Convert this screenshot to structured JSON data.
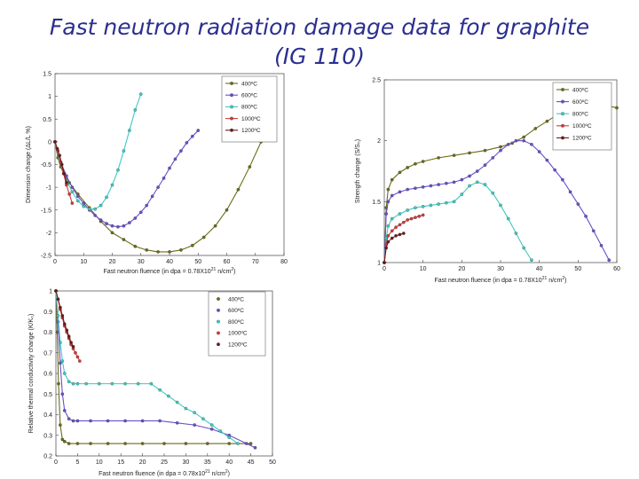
{
  "title_line1": "Fast neutron radiation damage data for graphite",
  "title_line2": "(IG 110)",
  "chart_data": [
    {
      "id": "dim",
      "type": "line",
      "title": "",
      "xlabel": "Fast neutron fluence (in dpa = 0.78X10",
      "xlabel_sup": "21",
      "xlabel_tail": " n/cm",
      "xlabel_sup2": "2",
      "xlabel_end": ")",
      "ylabel": "Dimension change (ΔL/L %)",
      "xlim": [
        0,
        80
      ],
      "ylim": [
        -2.5,
        1.5
      ],
      "xticks": [
        "0",
        "10",
        "20",
        "30",
        "40",
        "50",
        "60",
        "70",
        "80"
      ],
      "yticks": [
        "-2.5",
        "-2",
        "-1.5",
        "-1",
        "-0.5",
        "0",
        "0.5",
        "1",
        "1.5"
      ],
      "legend": "top-right",
      "series": [
        {
          "name": "400ºC",
          "color": "#6b6b1a",
          "x": [
            0,
            1,
            2,
            3,
            5,
            8,
            12,
            16,
            20,
            24,
            28,
            32,
            36,
            40,
            44,
            48,
            52,
            56,
            60,
            64,
            68,
            72,
            75
          ],
          "y": [
            0,
            -0.35,
            -0.55,
            -0.7,
            -0.9,
            -1.15,
            -1.45,
            -1.75,
            -2.0,
            -2.15,
            -2.3,
            -2.38,
            -2.42,
            -2.42,
            -2.38,
            -2.28,
            -2.1,
            -1.85,
            -1.5,
            -1.05,
            -0.55,
            0.0,
            0.4
          ]
        },
        {
          "name": "600ºC",
          "color": "#6a4fc9",
          "x": [
            0,
            2,
            4,
            6,
            8,
            10,
            12,
            14,
            16,
            18,
            20,
            22,
            24,
            26,
            28,
            30,
            32,
            34,
            36,
            38,
            40,
            42,
            44,
            46,
            48,
            50
          ],
          "y": [
            0,
            -0.45,
            -0.75,
            -1.0,
            -1.2,
            -1.35,
            -1.5,
            -1.62,
            -1.72,
            -1.8,
            -1.85,
            -1.87,
            -1.85,
            -1.78,
            -1.68,
            -1.55,
            -1.4,
            -1.2,
            -1.0,
            -0.8,
            -0.58,
            -0.38,
            -0.2,
            -0.02,
            0.12,
            0.25
          ]
        },
        {
          "name": "800ºC",
          "color": "#40c9c0",
          "x": [
            0,
            2,
            4,
            6,
            8,
            10,
            12,
            14,
            16,
            18,
            20,
            22,
            24,
            26,
            28,
            30
          ],
          "y": [
            0,
            -0.5,
            -0.85,
            -1.1,
            -1.3,
            -1.42,
            -1.48,
            -1.48,
            -1.4,
            -1.22,
            -0.95,
            -0.62,
            -0.2,
            0.25,
            0.7,
            1.05
          ]
        },
        {
          "name": "1000ºC",
          "color": "#d13a3a",
          "x": [
            0,
            1,
            2,
            3,
            4,
            5,
            6
          ],
          "y": [
            0,
            -0.2,
            -0.45,
            -0.7,
            -0.95,
            -1.15,
            -1.35
          ]
        },
        {
          "name": "1200ºC",
          "color": "#6b1a1a",
          "x": [
            0,
            0.8,
            1.6,
            2.4,
            3.2,
            4
          ],
          "y": [
            0,
            -0.15,
            -0.3,
            -0.5,
            -0.7,
            -0.9
          ]
        }
      ]
    },
    {
      "id": "str",
      "type": "line",
      "title": "",
      "xlabel": "Fast neutron fluence (in dpa = 0.78X10",
      "xlabel_sup": "21",
      "xlabel_tail": " n/cm",
      "xlabel_sup2": "2",
      "xlabel_end": ")",
      "ylabel": "Strength change (S/S₀)",
      "xlim": [
        0,
        60
      ],
      "ylim": [
        1,
        2.5
      ],
      "xticks": [
        "0",
        "10",
        "20",
        "30",
        "40",
        "50",
        "60"
      ],
      "yticks": [
        "1",
        "1.5",
        "2",
        "2.5"
      ],
      "legend": "top-right",
      "series": [
        {
          "name": "400ºC",
          "color": "#6b6b1a",
          "x": [
            0,
            0.5,
            1,
            2,
            4,
            6,
            8,
            10,
            14,
            18,
            22,
            26,
            30,
            33,
            36,
            39,
            42,
            45,
            48,
            51,
            54,
            57,
            60
          ],
          "y": [
            1.0,
            1.45,
            1.6,
            1.68,
            1.74,
            1.78,
            1.81,
            1.83,
            1.86,
            1.88,
            1.9,
            1.92,
            1.95,
            1.98,
            2.03,
            2.1,
            2.16,
            2.22,
            2.27,
            2.3,
            2.3,
            2.29,
            2.27
          ]
        },
        {
          "name": "600ºC",
          "color": "#6a4fc9",
          "x": [
            0,
            0.5,
            1,
            2,
            4,
            6,
            8,
            10,
            12,
            14,
            16,
            18,
            20,
            22,
            24,
            26,
            28,
            30,
            32,
            34,
            36,
            38,
            40,
            42,
            44,
            46,
            48,
            50,
            52,
            54,
            56,
            58
          ],
          "y": [
            1.0,
            1.4,
            1.5,
            1.55,
            1.58,
            1.6,
            1.61,
            1.62,
            1.63,
            1.64,
            1.65,
            1.66,
            1.68,
            1.71,
            1.75,
            1.8,
            1.86,
            1.92,
            1.97,
            2.0,
            2.0,
            1.97,
            1.91,
            1.84,
            1.76,
            1.68,
            1.58,
            1.48,
            1.38,
            1.26,
            1.14,
            1.02
          ]
        },
        {
          "name": "800ºC",
          "color": "#40c9c0",
          "x": [
            0,
            0.5,
            1,
            2,
            4,
            6,
            8,
            10,
            12,
            14,
            16,
            18,
            20,
            22,
            24,
            26,
            28,
            30,
            32,
            34,
            36,
            38
          ],
          "y": [
            1.0,
            1.2,
            1.3,
            1.36,
            1.4,
            1.43,
            1.45,
            1.46,
            1.47,
            1.48,
            1.49,
            1.5,
            1.56,
            1.63,
            1.66,
            1.64,
            1.57,
            1.47,
            1.36,
            1.24,
            1.12,
            1.02
          ]
        },
        {
          "name": "1000ºC",
          "color": "#d13a3a",
          "x": [
            0,
            0.5,
            1,
            2,
            3,
            4,
            5,
            6,
            7,
            8,
            9,
            10
          ],
          "y": [
            1.0,
            1.15,
            1.22,
            1.26,
            1.29,
            1.31,
            1.33,
            1.35,
            1.36,
            1.37,
            1.38,
            1.39
          ]
        },
        {
          "name": "1200ºC",
          "color": "#6b1a1a",
          "x": [
            0,
            0.5,
            1,
            2,
            3,
            4,
            5
          ],
          "y": [
            1.0,
            1.12,
            1.17,
            1.2,
            1.22,
            1.23,
            1.24
          ]
        }
      ]
    },
    {
      "id": "th",
      "type": "line",
      "title": "",
      "xlabel": "Fast neutron fluence (in dpa = 0.78x10",
      "xlabel_sup": "21",
      "xlabel_tail": " n/cm",
      "xlabel_sup2": "2",
      "xlabel_end": ")",
      "ylabel": "Relative thermal conductivity change (K/K₀)",
      "xlim": [
        0,
        50
      ],
      "ylim": [
        0.2,
        1
      ],
      "xticks": [
        "0",
        "5",
        "10",
        "15",
        "20",
        "25",
        "30",
        "35",
        "40",
        "45",
        "50"
      ],
      "yticks": [
        "0.2",
        "0.3",
        "0.4",
        "0.5",
        "0.6",
        "0.7",
        "0.8",
        "0.9",
        "1"
      ],
      "legend": "top-right",
      "series": [
        {
          "name": "400ºC",
          "color": "#6b6b1a",
          "x": [
            0,
            0.3,
            0.6,
            1,
            1.5,
            2,
            3,
            5,
            8,
            12,
            16,
            20,
            25,
            30,
            35,
            40,
            45
          ],
          "y": [
            1.0,
            0.8,
            0.55,
            0.35,
            0.28,
            0.27,
            0.26,
            0.26,
            0.26,
            0.26,
            0.26,
            0.26,
            0.26,
            0.26,
            0.26,
            0.26,
            0.26
          ]
        },
        {
          "name": "600ºC",
          "color": "#6a4fc9",
          "x": [
            0,
            0.5,
            1,
            1.5,
            2,
            3,
            4,
            5,
            8,
            12,
            16,
            20,
            24,
            28,
            32,
            36,
            40,
            44,
            46
          ],
          "y": [
            1.0,
            0.85,
            0.65,
            0.5,
            0.42,
            0.38,
            0.37,
            0.37,
            0.37,
            0.37,
            0.37,
            0.37,
            0.37,
            0.36,
            0.35,
            0.33,
            0.3,
            0.26,
            0.24
          ]
        },
        {
          "name": "800ºC",
          "color": "#40c9c0",
          "x": [
            0,
            0.5,
            1,
            1.5,
            2,
            3,
            4,
            5,
            7,
            10,
            13,
            16,
            19,
            22,
            24,
            26,
            28,
            30,
            32,
            34,
            36,
            38,
            40,
            42
          ],
          "y": [
            1.0,
            0.88,
            0.75,
            0.66,
            0.6,
            0.56,
            0.55,
            0.55,
            0.55,
            0.55,
            0.55,
            0.55,
            0.55,
            0.55,
            0.52,
            0.49,
            0.46,
            0.43,
            0.41,
            0.38,
            0.35,
            0.32,
            0.29,
            0.26
          ]
        },
        {
          "name": "1000ºC",
          "color": "#d13a3a",
          "x": [
            0,
            0.5,
            1,
            1.5,
            2,
            2.5,
            3,
            3.5,
            4,
            4.5,
            5,
            5.5
          ],
          "y": [
            1.0,
            0.96,
            0.91,
            0.87,
            0.83,
            0.8,
            0.77,
            0.74,
            0.72,
            0.7,
            0.68,
            0.66
          ]
        },
        {
          "name": "1200ºC",
          "color": "#6b1a1a",
          "x": [
            0,
            0.5,
            1,
            1.5,
            2,
            2.5,
            3,
            3.5,
            4
          ],
          "y": [
            1.0,
            0.96,
            0.92,
            0.88,
            0.84,
            0.81,
            0.78,
            0.75,
            0.73
          ]
        }
      ]
    }
  ]
}
